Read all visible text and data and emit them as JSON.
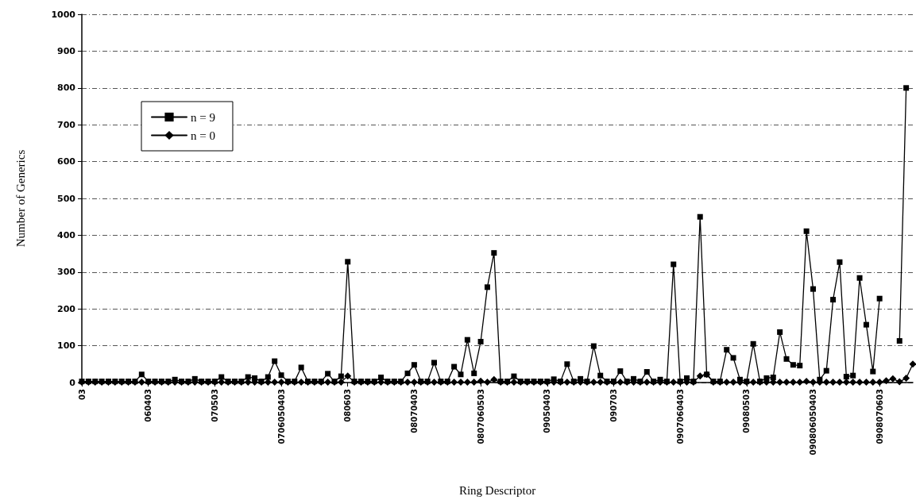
{
  "chart_data": {
    "type": "line",
    "xlabel": "Ring Descriptor",
    "ylabel": "Number of Generics",
    "categories": [
      "03",
      null,
      null,
      null,
      null,
      null,
      null,
      null,
      null,
      null,
      "060403",
      null,
      null,
      null,
      null,
      null,
      null,
      null,
      null,
      null,
      "070503",
      null,
      null,
      null,
      null,
      null,
      null,
      null,
      null,
      null,
      "0706050403",
      null,
      null,
      null,
      null,
      null,
      null,
      null,
      null,
      null,
      "080603",
      null,
      null,
      null,
      null,
      null,
      null,
      null,
      null,
      null,
      "08070403",
      null,
      null,
      null,
      null,
      null,
      null,
      null,
      null,
      null,
      "0807060503",
      null,
      null,
      null,
      null,
      null,
      null,
      null,
      null,
      null,
      "09050403",
      null,
      null,
      null,
      null,
      null,
      null,
      null,
      null,
      null,
      "090703",
      null,
      null,
      null,
      null,
      null,
      null,
      null,
      null,
      null,
      "0907060403",
      null,
      null,
      null,
      null,
      null,
      null,
      null,
      null,
      null,
      "09080503",
      null,
      null,
      null,
      null,
      null,
      null,
      null,
      null,
      null,
      "090806050403",
      null,
      null,
      null,
      null,
      null,
      null,
      null,
      null,
      null,
      "0908070603",
      null,
      null,
      null,
      null,
      null
    ],
    "series": [
      {
        "name": "n = 9",
        "color": "#000000",
        "marker": "square",
        "values": [
          3,
          3,
          3,
          3,
          3,
          3,
          3,
          3,
          3,
          22,
          3,
          3,
          3,
          3,
          8,
          3,
          3,
          10,
          3,
          3,
          3,
          15,
          3,
          3,
          3,
          15,
          12,
          3,
          15,
          58,
          20,
          3,
          3,
          41,
          3,
          3,
          3,
          24,
          3,
          17,
          328,
          3,
          3,
          3,
          3,
          14,
          3,
          3,
          3,
          25,
          48,
          3,
          3,
          54,
          3,
          3,
          43,
          22,
          116,
          25,
          111,
          259,
          352,
          3,
          3,
          17,
          3,
          3,
          3,
          3,
          3,
          9,
          3,
          50,
          3,
          10,
          3,
          99,
          19,
          3,
          3,
          31,
          3,
          10,
          3,
          29,
          3,
          8,
          3,
          321,
          3,
          12,
          3,
          450,
          22,
          3,
          3,
          89,
          67,
          8,
          3,
          105,
          3,
          12,
          14,
          137,
          64,
          48,
          46,
          411,
          254,
          8,
          32,
          225,
          327,
          16,
          19,
          284,
          157,
          30,
          228,
          null,
          null,
          113,
          800,
          null
        ]
      },
      {
        "name": "n = 0",
        "color": "#000000",
        "marker": "diamond",
        "values": [
          1,
          1,
          1,
          1,
          1,
          1,
          1,
          1,
          1,
          1,
          1,
          1,
          1,
          1,
          1,
          1,
          1,
          1,
          1,
          1,
          1,
          1,
          1,
          1,
          1,
          1,
          1,
          1,
          1,
          1,
          1,
          1,
          1,
          1,
          1,
          1,
          1,
          1,
          1,
          1,
          18,
          1,
          1,
          1,
          1,
          1,
          1,
          1,
          1,
          1,
          1,
          1,
          1,
          1,
          1,
          1,
          1,
          1,
          1,
          1,
          4,
          1,
          8,
          1,
          1,
          1,
          1,
          1,
          1,
          1,
          1,
          1,
          1,
          1,
          1,
          1,
          1,
          1,
          1,
          1,
          1,
          1,
          1,
          1,
          1,
          1,
          1,
          1,
          1,
          1,
          1,
          1,
          1,
          18,
          22,
          1,
          1,
          1,
          1,
          1,
          1,
          1,
          1,
          1,
          1,
          1,
          1,
          1,
          1,
          3,
          1,
          1,
          1,
          1,
          1,
          1,
          1,
          1,
          1,
          1,
          1,
          5,
          10,
          2,
          12,
          50
        ]
      }
    ],
    "ylim": [
      0,
      1000
    ],
    "yticks": [
      0,
      100,
      200,
      300,
      400,
      500,
      600,
      700,
      800,
      900,
      1000
    ],
    "grid": "y",
    "legend": "top left",
    "line_style": "solid"
  }
}
